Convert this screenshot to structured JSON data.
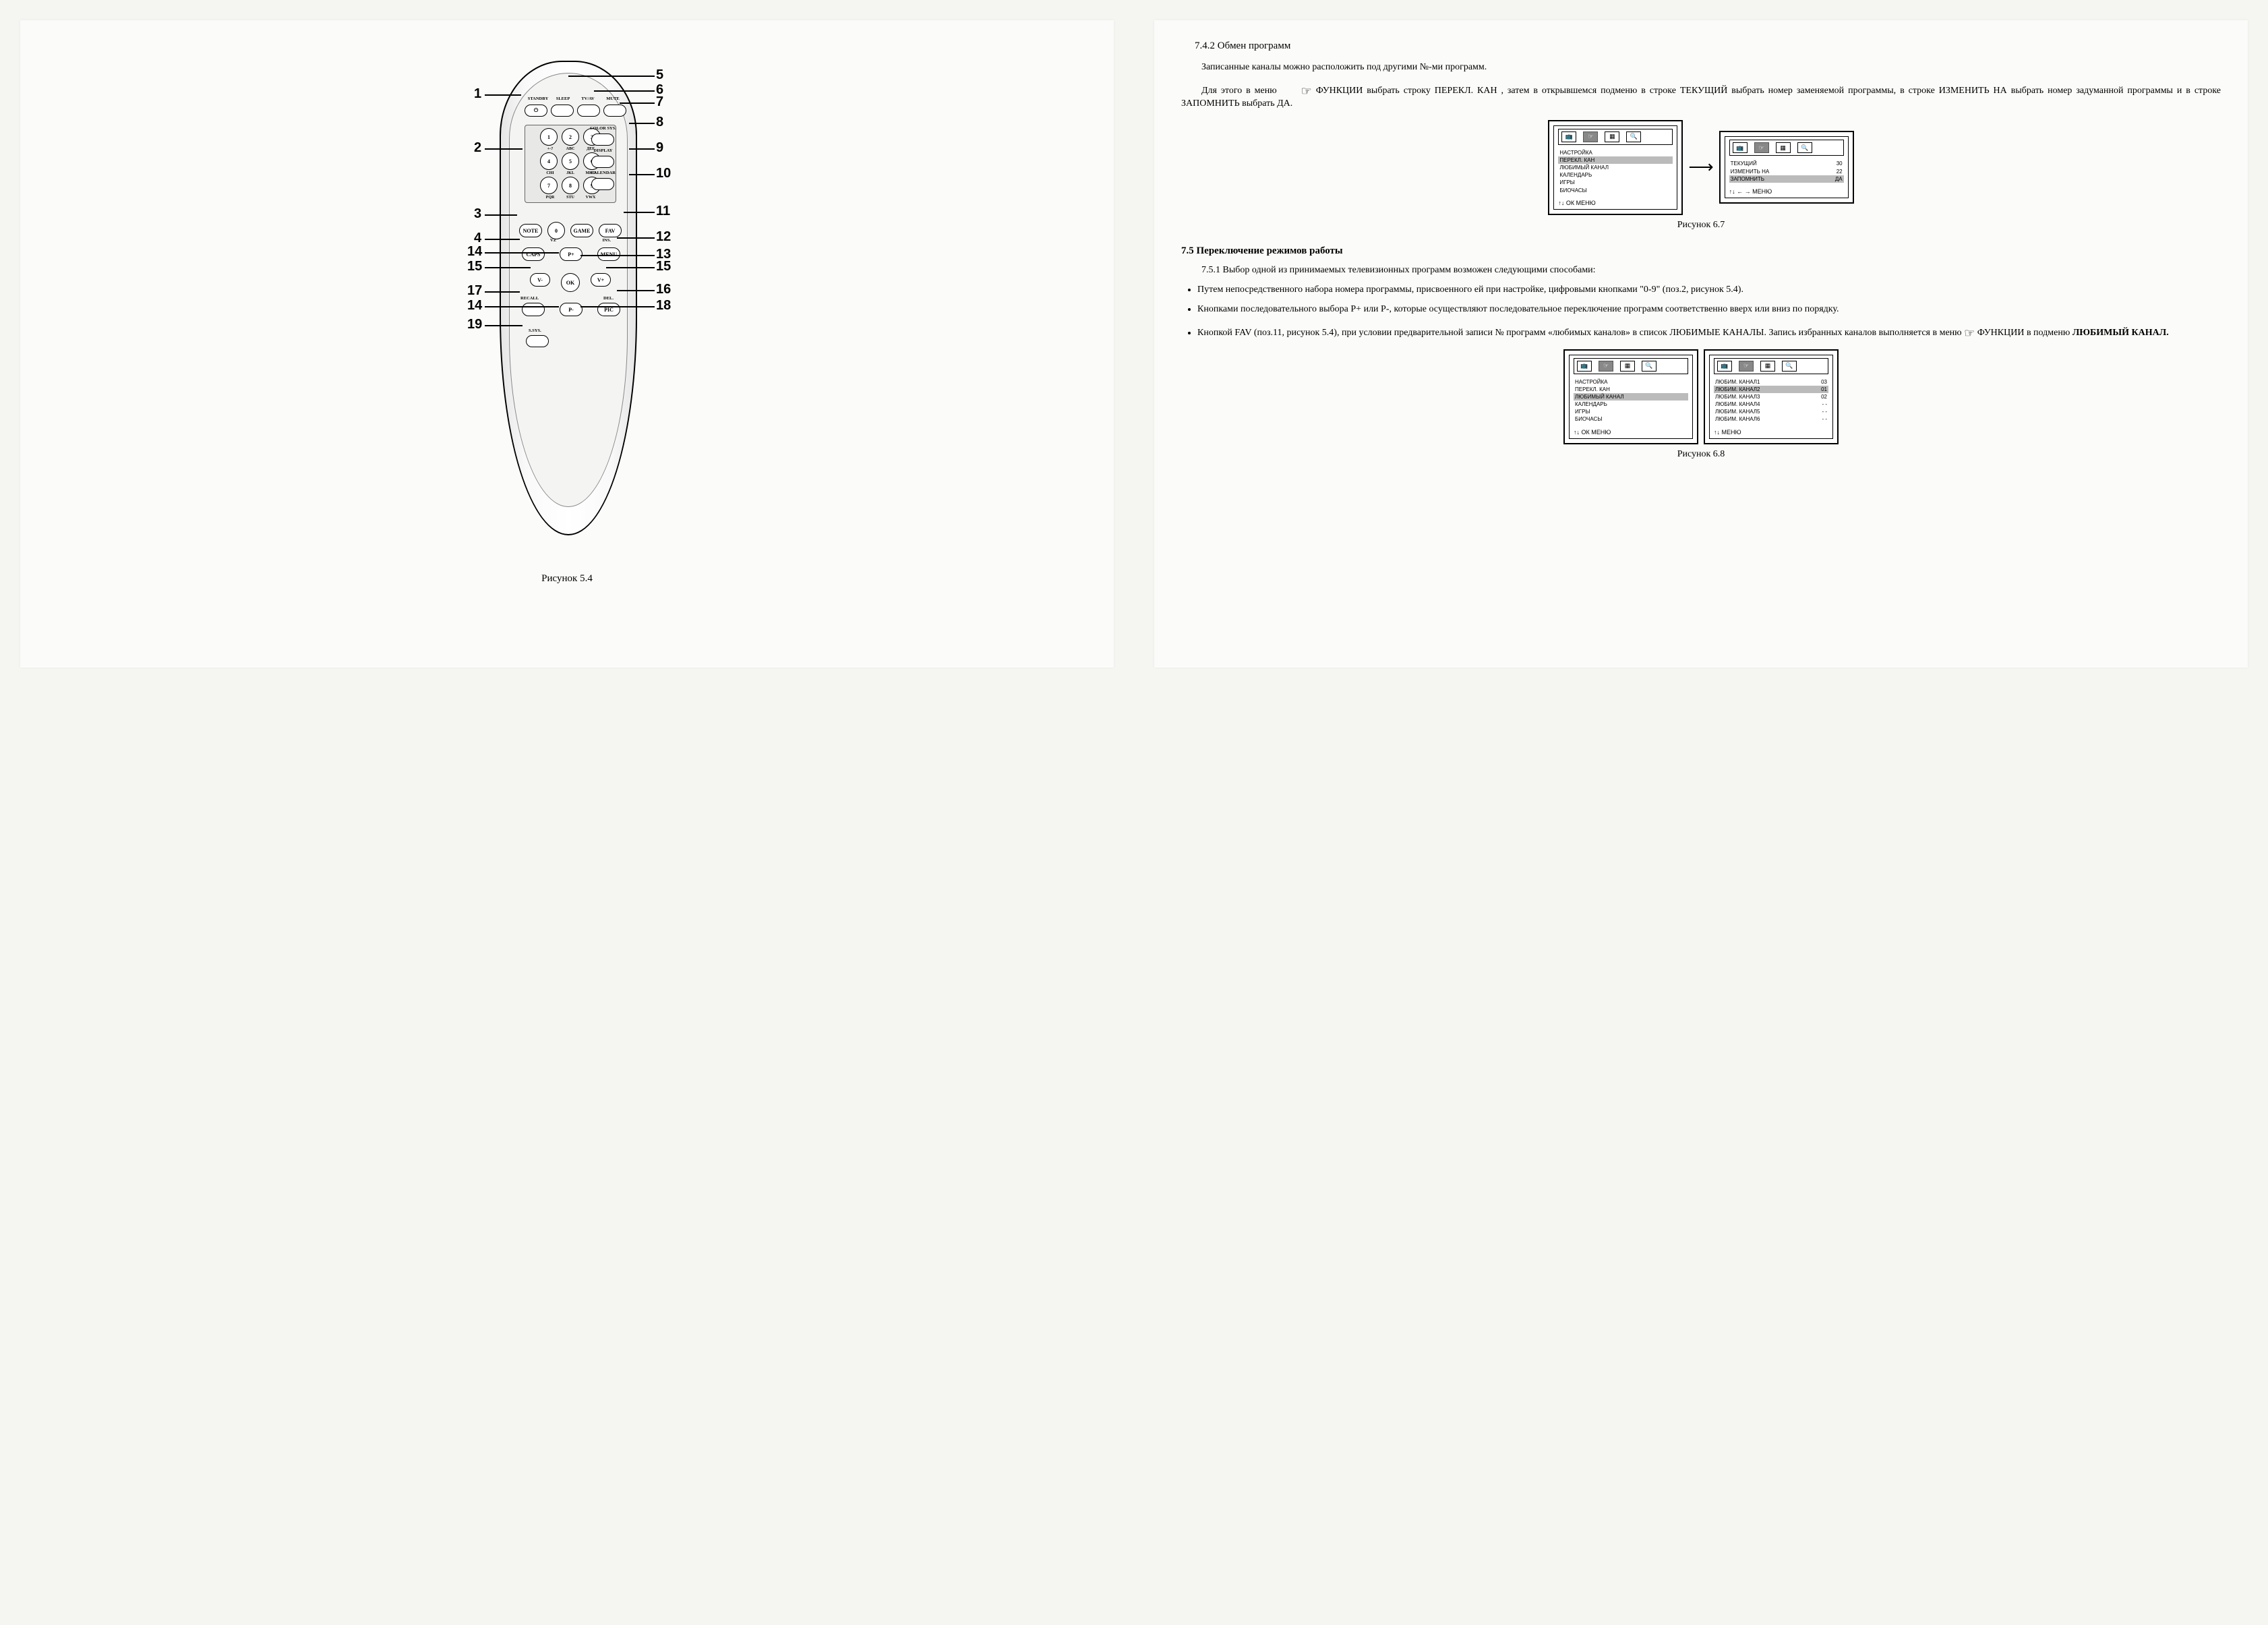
{
  "left": {
    "figure_caption": "Рисунок 5.4",
    "top_labels": [
      "STANDBY",
      "SLEEP",
      "TV/AV",
      "MUTE"
    ],
    "side_labels": [
      "COLOR SYS.",
      "DISPLAY",
      "CALENDAR"
    ],
    "keypad": {
      "keys": [
        "1",
        "2",
        "3",
        "4",
        "5",
        "6",
        "7",
        "8",
        "9",
        "0"
      ],
      "subs_r1": [
        "+-?",
        "ABC",
        "ДEF"
      ],
      "subs_r2": [
        "CHI",
        "JKL",
        "MHO"
      ],
      "subs_r3": [
        "PQR",
        "STU",
        "VWX"
      ],
      "sub_zero": "VZ"
    },
    "buttons": {
      "note": "NOTE",
      "game": "GAME",
      "fav": "FAV",
      "caps": "CAPS",
      "menu": "MENU",
      "ins": "INS.",
      "pplus": "P+",
      "pminus": "P-",
      "vminus": "V-",
      "vplus": "V+",
      "ok": "OK",
      "recall": "RECALL",
      "del": "DEL.",
      "pic": "PIC",
      "ssys": "S.SYS.",
      "power": "⏻"
    },
    "callouts": {
      "1": "1",
      "2": "2",
      "3": "3",
      "4": "4",
      "5": "5",
      "6": "6",
      "7": "7",
      "8": "8",
      "9": "9",
      "10": "10",
      "11": "11",
      "12": "12",
      "13": "13",
      "14": "14",
      "15l": "15",
      "15r": "15",
      "16": "16",
      "17": "17",
      "18": "18",
      "19": "19"
    }
  },
  "right": {
    "h742": "7.4.2  Обмен программ",
    "p1": "Записанные каналы можно расположить под другими №-ми программ.",
    "p2a": "Для этого в меню ",
    "p2b": " ФУНКЦИИ выбрать строку ПЕРЕКЛ. КАН , затем в открывшемся подменю в строке ТЕКУЩИЙ выбрать номер заменяемой программы, в строке ИЗМЕНИТЬ НА выбрать номер задуманной программы и в строке ЗАПОМНИТЬ выбрать ДА.",
    "fig67_caption": "Рисунок 6.7",
    "menu67a": {
      "items": [
        "НАСТРОЙКА",
        "ПЕРЕКЛ. КАН",
        "ЛЮБИМЫЙ КАНАЛ",
        "КАЛЕНДАРЬ",
        "ИГРЫ",
        "БИОЧАСЫ"
      ],
      "highlight_index": 1,
      "footer": "↑↓      ОК    МЕНЮ"
    },
    "menu67b": {
      "rows": [
        {
          "l": "ТЕКУЩИЙ",
          "r": "30"
        },
        {
          "l": "ИЗМЕНИТЬ НА",
          "r": "22"
        },
        {
          "l": "ЗАПОМНИТЬ",
          "r": "ДА"
        }
      ],
      "highlight_index": 2,
      "footer": "↑↓ ← →     МЕНЮ"
    },
    "h75": "7.5  Переключение режимов работы",
    "p751": "7.5.1   Выбор одной из принимаемых телевизионных программ возможен следующими способами:",
    "bullets": [
      "Путем непосредственного набора номера программы, присвоенного ей при настройке, цифровыми кнопками \"0-9\" (поз.2, рисунок 5.4).",
      "Кнопками последовательного выбора  P+ или P-, которые осуществляют последовательное переключение программ соответственно вверх или вниз по порядку."
    ],
    "bullet3_a": "Кнопкой FAV (поз.11, рисунок 5.4), при условии предварительной записи № программ «любимых каналов» в список ЛЮБИМЫЕ КАНАЛЫ. Запись избранных каналов выполняется в меню ",
    "bullet3_b": " ФУНКЦИИ в подменю ",
    "bullet3_c": "ЛЮБИМЫЙ КАНАЛ.",
    "fig68_caption": "Рисунок 6.8",
    "menu68a": {
      "items": [
        "НАСТРОЙКА",
        "ПЕРЕКЛ. КАН",
        "ЛЮБИМЫЙ КАНАЛ",
        "КАЛЕНДАРЬ",
        "ИГРЫ",
        "БИОЧАСЫ"
      ],
      "highlight_index": 2,
      "footer": "↑↓      ОК    МЕНЮ"
    },
    "menu68b": {
      "rows": [
        {
          "l": "ЛЮБИМ. КАНАЛ1",
          "r": "03"
        },
        {
          "l": "ЛЮБИМ. КАНАЛ2",
          "r": "01"
        },
        {
          "l": "ЛЮБИМ. КАНАЛ3",
          "r": "02"
        },
        {
          "l": "ЛЮБИМ. КАНАЛ4",
          "r": "- -"
        },
        {
          "l": "ЛЮБИМ. КАНАЛ5",
          "r": "- -"
        },
        {
          "l": "ЛЮБИМ. КАНАЛ6",
          "r": "- -"
        }
      ],
      "highlight_index": 1,
      "footer": "↑↓             МЕНЮ"
    }
  },
  "colors": {
    "highlight": "#bbbbbb",
    "paper": "#fbfbf9"
  }
}
